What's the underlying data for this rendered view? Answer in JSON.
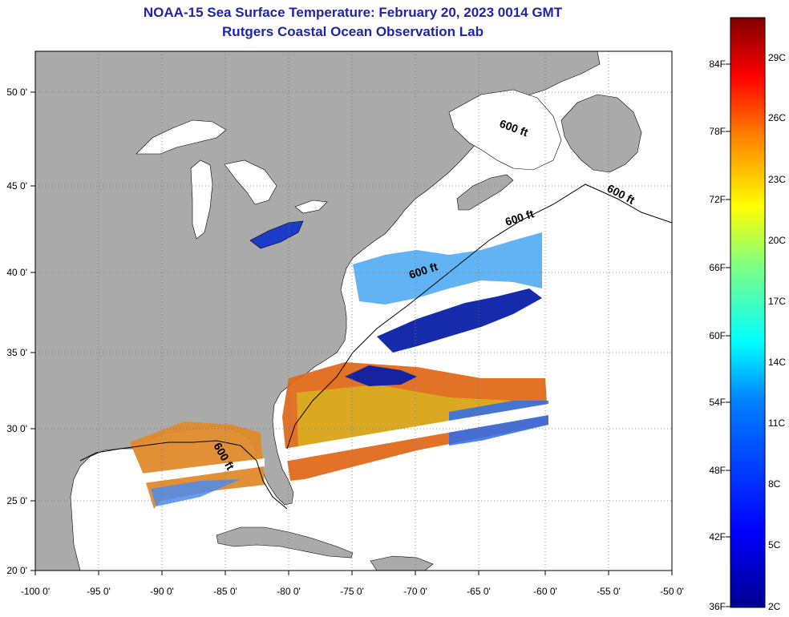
{
  "title": {
    "line1": "NOAA-15 Sea Surface Temperature:  February 20, 2023 0014 GMT",
    "line2": "Rutgers Coastal Ocean Observation Lab"
  },
  "map": {
    "lon_ticks": [
      "-100 0'",
      "-95 0'",
      "-90 0'",
      "-85 0'",
      "-80 0'",
      "-75 0'",
      "-70 0'",
      "-65 0'",
      "-60 0'",
      "-55 0'",
      "-50 0'"
    ],
    "lat_ticks": [
      "50 0'",
      "45 0'",
      "40 0'",
      "35 0'",
      "30 0'",
      "25 0'",
      "20 0'"
    ],
    "isobath_labels": [
      "600 ft",
      "600 ft",
      "600 ft",
      "600 ft",
      "600 ft"
    ],
    "colors": {
      "land": "#aaaaaa",
      "ocean": "#ffffff",
      "grid": "#888888"
    }
  },
  "colorbar": {
    "fahrenheit": [
      "84F",
      "78F",
      "72F",
      "66F",
      "60F",
      "54F",
      "48F",
      "42F",
      "36F"
    ],
    "celsius": [
      "29C",
      "26C",
      "23C",
      "20C",
      "17C",
      "14C",
      "11C",
      "8C",
      "5C",
      "2C"
    ],
    "colors": [
      "#00008f",
      "#0000ff",
      "#0080ff",
      "#00ffff",
      "#80ff80",
      "#ffff00",
      "#ff8000",
      "#ff0000",
      "#800000"
    ]
  }
}
